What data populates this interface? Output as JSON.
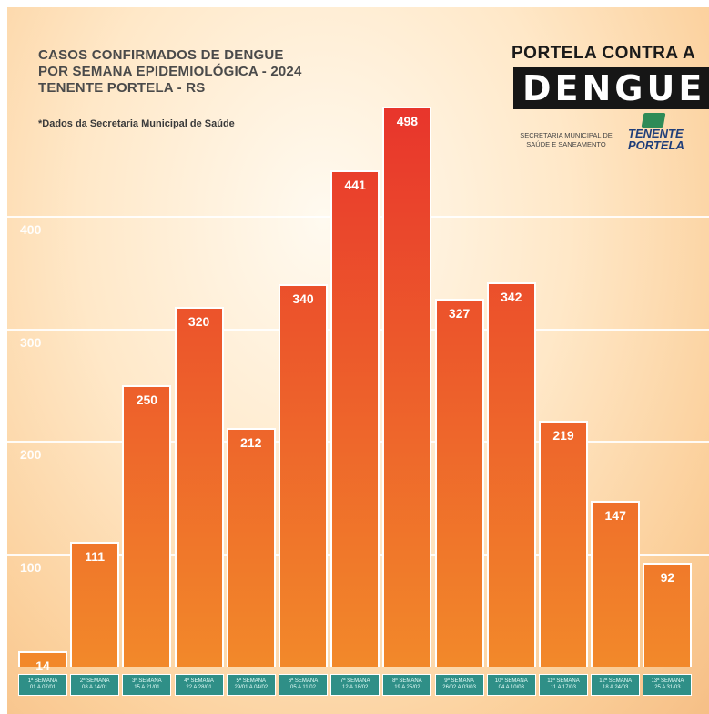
{
  "title_lines": [
    "CASOS CONFIRMADOS DE DENGUE",
    "POR SEMANA EPIDEMIOLÓGICA - 2024",
    "TENENTE PORTELA - RS"
  ],
  "note": "*Dados da Secretaria Municipal de Saúde",
  "logo": {
    "line1": "PORTELA CONTRA A",
    "line2": "DENGUE",
    "secretaria": "SECRETARIA MUNICIPAL DE SAÚDE E SANEAMENTO",
    "city": "TENENTE PORTELA"
  },
  "colors": {
    "bar_top": "#e8352c",
    "bar_bottom": "#f2892a",
    "axis_cell": "#2f8f87"
  },
  "chart_data": {
    "type": "bar",
    "title": "CASOS CONFIRMADOS DE DENGUE POR SEMANA EPIDEMIOLÓGICA - 2024 TENENTE PORTELA - RS",
    "xlabel": "",
    "ylabel": "",
    "ylim": [
      0,
      530
    ],
    "grid": true,
    "yticks": [
      100,
      200,
      300,
      400
    ],
    "categories": [
      {
        "week": "1ª SEMANA",
        "dates": "01 A 07/01"
      },
      {
        "week": "2ª SEMANA",
        "dates": "08 A 14/01"
      },
      {
        "week": "3ª SEMANA",
        "dates": "15 A 21/01"
      },
      {
        "week": "4ª SEMANA",
        "dates": "22 A 28/01"
      },
      {
        "week": "5ª SEMANA",
        "dates": "29/01 A 04/02"
      },
      {
        "week": "6ª SEMANA",
        "dates": "05 A 11/02"
      },
      {
        "week": "7ª SEMANA",
        "dates": "12 A 18/02"
      },
      {
        "week": "8ª SEMANA",
        "dates": "19 A 25/02"
      },
      {
        "week": "9ª SEMANA",
        "dates": "26/02 A 03/03"
      },
      {
        "week": "10ª SEMANA",
        "dates": "04 A 10/03"
      },
      {
        "week": "11ª SEMANA",
        "dates": "11 A 17/03"
      },
      {
        "week": "12ª SEMANA",
        "dates": "18 A 24/03"
      },
      {
        "week": "13ª SEMANA",
        "dates": "25 A 31/03"
      }
    ],
    "values": [
      14,
      111,
      250,
      320,
      212,
      340,
      441,
      498,
      327,
      342,
      219,
      147,
      92
    ]
  }
}
